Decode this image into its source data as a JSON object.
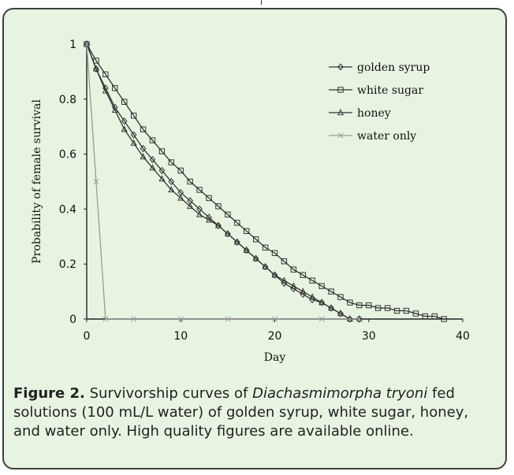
{
  "caption": {
    "label": "Figure 2.",
    "text_before_species": " Survivorship curves of ",
    "species": "Diachasmimorpha tryoni",
    "text_after_species": " fed solutions (100 mL/L water) of golden syrup, white sugar, honey, and water only. High quality figures are available online."
  },
  "chart_data": {
    "type": "line",
    "xlabel": "Day",
    "ylabel": "Probability of female survival",
    "xlim": [
      0,
      40
    ],
    "ylim": [
      0,
      1
    ],
    "xticks": [
      0,
      10,
      20,
      30,
      40
    ],
    "yticks": [
      0,
      0.2,
      0.4,
      0.6,
      0.8,
      1
    ],
    "ytick_labels": [
      "0",
      "0.2",
      "0.4",
      "0.6",
      "0.8",
      "1"
    ],
    "grid": false,
    "legend_position": "top-right",
    "series": [
      {
        "name": "golden syrup",
        "marker": "diamond",
        "color": "#333333",
        "x": [
          0,
          1,
          2,
          3,
          4,
          5,
          6,
          7,
          8,
          9,
          10,
          11,
          12,
          13,
          14,
          15,
          16,
          17,
          18,
          19,
          20,
          21,
          22,
          23,
          24,
          25,
          26,
          27,
          28,
          29
        ],
        "y": [
          1.0,
          0.91,
          0.84,
          0.77,
          0.72,
          0.67,
          0.62,
          0.58,
          0.54,
          0.5,
          0.46,
          0.43,
          0.4,
          0.37,
          0.34,
          0.31,
          0.28,
          0.25,
          0.22,
          0.19,
          0.16,
          0.13,
          0.11,
          0.09,
          0.07,
          0.06,
          0.04,
          0.02,
          0.0,
          0.0
        ]
      },
      {
        "name": "white sugar",
        "marker": "square",
        "color": "#333333",
        "x": [
          0,
          1,
          2,
          3,
          4,
          5,
          6,
          7,
          8,
          9,
          10,
          11,
          12,
          13,
          14,
          15,
          16,
          17,
          18,
          19,
          20,
          21,
          22,
          23,
          24,
          25,
          26,
          27,
          28,
          29,
          30,
          31,
          32,
          33,
          34,
          35,
          36,
          37,
          38
        ],
        "y": [
          1.0,
          0.94,
          0.89,
          0.84,
          0.79,
          0.74,
          0.69,
          0.65,
          0.61,
          0.57,
          0.54,
          0.5,
          0.47,
          0.44,
          0.41,
          0.38,
          0.35,
          0.32,
          0.29,
          0.26,
          0.24,
          0.21,
          0.18,
          0.16,
          0.14,
          0.12,
          0.1,
          0.08,
          0.06,
          0.05,
          0.05,
          0.04,
          0.04,
          0.03,
          0.03,
          0.02,
          0.01,
          0.01,
          0.0
        ]
      },
      {
        "name": "honey",
        "marker": "triangle",
        "color": "#333333",
        "x": [
          0,
          1,
          2,
          3,
          4,
          5,
          6,
          7,
          8,
          9,
          10,
          11,
          12,
          13,
          14,
          15,
          16,
          17,
          18,
          19,
          20,
          21,
          22,
          23,
          24,
          25,
          26,
          27,
          28,
          29
        ],
        "y": [
          1.0,
          0.91,
          0.83,
          0.76,
          0.69,
          0.64,
          0.59,
          0.55,
          0.51,
          0.47,
          0.44,
          0.41,
          0.38,
          0.36,
          0.34,
          0.31,
          0.28,
          0.25,
          0.22,
          0.19,
          0.16,
          0.14,
          0.12,
          0.1,
          0.08,
          0.06,
          0.04,
          0.02,
          0.0,
          0.0
        ]
      },
      {
        "name": "water only",
        "marker": "x",
        "color": "#9a9a9a",
        "x": [
          0,
          1,
          2,
          5,
          10,
          15,
          20,
          25,
          29
        ],
        "y": [
          1.0,
          0.5,
          0.0,
          0.0,
          0.0,
          0.0,
          0.0,
          0.0,
          0.0
        ]
      }
    ]
  }
}
